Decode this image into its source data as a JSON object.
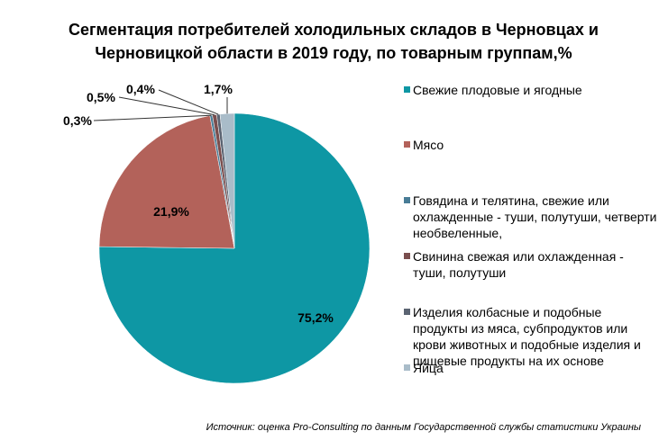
{
  "chart_data": {
    "type": "pie",
    "title": "Сегментация потребителей холодильных складов в Черновцах и\nЧерновицкой области в 2019 году, по товарным группам,%",
    "slices": [
      {
        "label": "Свежие плодовые и ягодные",
        "value": 75.2,
        "display": "75,2%",
        "color": "#0e97a4"
      },
      {
        "label": "Мясо",
        "value": 21.9,
        "display": "21,9%",
        "color": "#b3625a"
      },
      {
        "label": "Говядина и телятина, свежие или охлажденные - туши, полутуши, четверти необвеленные,",
        "value": 0.3,
        "display": "0,3%",
        "color": "#487c96"
      },
      {
        "label": "Свинина свежая или охлажденная - туши, полутуши",
        "value": 0.5,
        "display": "0,5%",
        "color": "#7a4e4e"
      },
      {
        "label": "Изделия колбасные и подобные продукты из мяса, субпродуктов или крови животных и подобные изделия и пищевые продукты на их основе",
        "value": 0.4,
        "display": "0,4%",
        "color": "#5b6472"
      },
      {
        "label": "Яйца",
        "value": 1.7,
        "display": "1,7%",
        "color": "#a9bcc9"
      }
    ],
    "legend_position": "right"
  },
  "source": "Источник: оценка Pro-Consulting по данным Государственной службы статистики Украины"
}
